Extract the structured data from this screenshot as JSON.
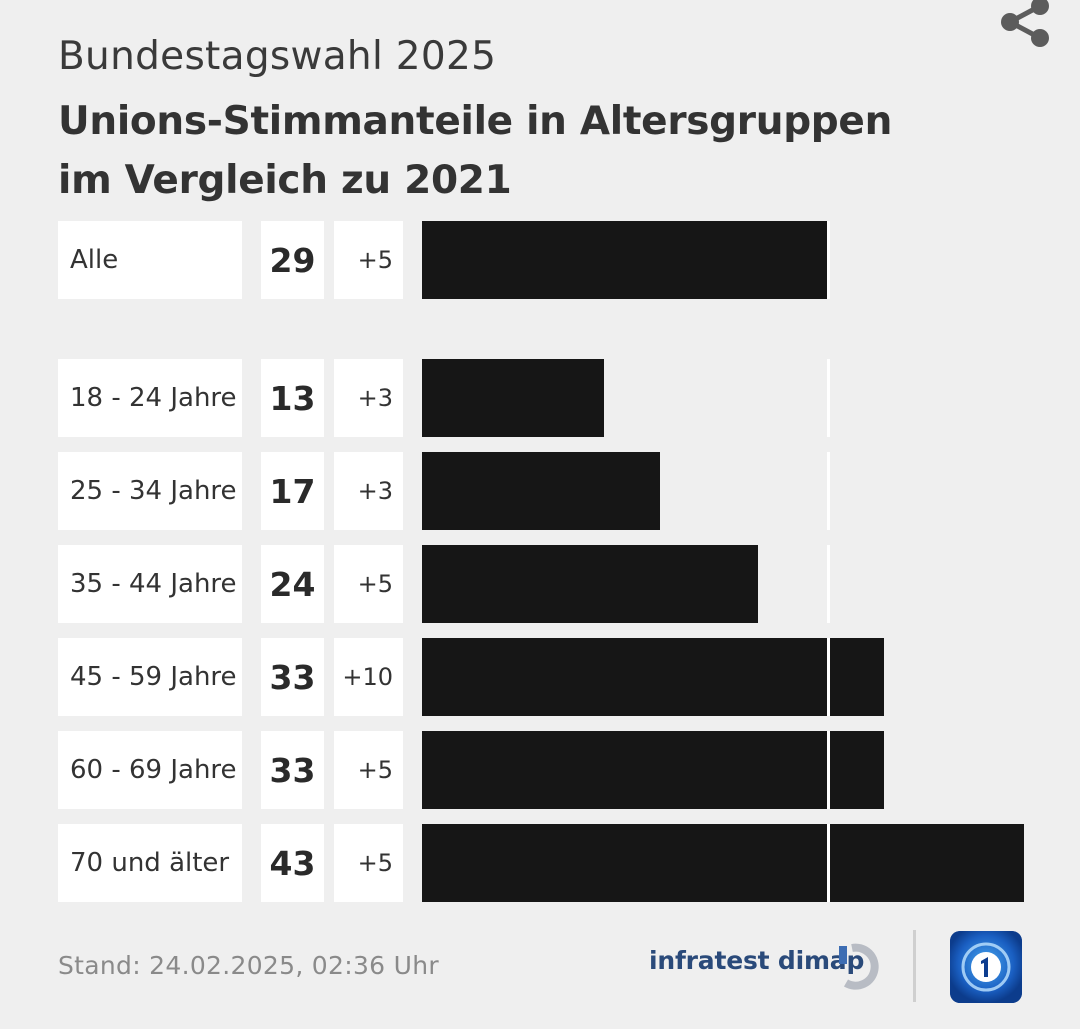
{
  "header": {
    "kicker": "Bundestagswahl 2025",
    "title_line1": "Unions-Stimmanteile in Altersgruppen",
    "title_line2": "im Vergleich zu 2021"
  },
  "chart_data": {
    "type": "bar",
    "orientation": "horizontal",
    "title": "Unions-Stimmanteile in Altersgruppen im Vergleich zu 2021",
    "categories": [
      "Alle",
      "18 - 24 Jahre",
      "25 - 34 Jahre",
      "35 - 44 Jahre",
      "45 - 59 Jahre",
      "60 - 69 Jahre",
      "70 und älter"
    ],
    "values": [
      29,
      13,
      17,
      24,
      33,
      33,
      43
    ],
    "value_labels": [
      "29",
      "13",
      "17",
      "24",
      "33",
      "33",
      "43"
    ],
    "changes": [
      "+5",
      "+3",
      "+3",
      "+5",
      "+10",
      "+5",
      "+5"
    ],
    "reference_value": 29,
    "reference_label": "Alle",
    "xlim": [
      0,
      43
    ],
    "bar_color": "#161616",
    "xlabel": "",
    "ylabel": ""
  },
  "footer": {
    "stand": "Stand:  24.02.2025, 02:36 Uhr",
    "source": "infratest dimap"
  },
  "colors": {
    "background": "#efefef",
    "bar": "#161616",
    "source_blue": "#2a4a7a",
    "tv_blue": "#0d3d8f"
  }
}
